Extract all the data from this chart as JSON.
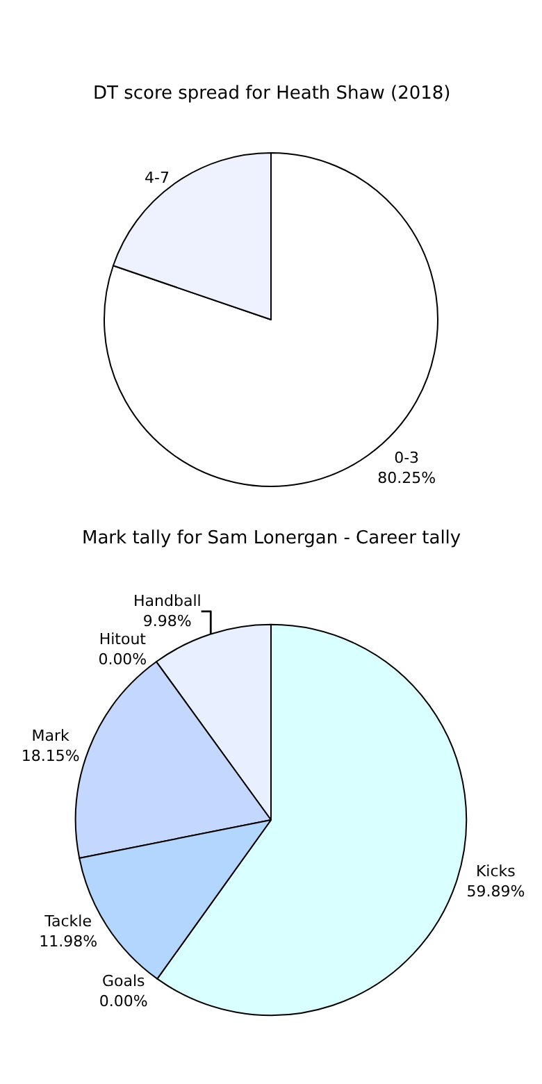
{
  "chart_data": [
    {
      "type": "pie",
      "title": "Mark tally for Sam Lonergan - Career tally",
      "categories": [
        "Kicks",
        "Handball",
        "Hitout",
        "Mark",
        "Tackle",
        "Goals"
      ],
      "values": [
        59.89,
        9.98,
        0.0,
        18.15,
        11.98,
        0.0
      ],
      "value_labels": [
        "59.89%",
        "9.98%",
        "0.00%",
        "18.15%",
        "11.98%",
        "0.00%"
      ],
      "colors": [
        "#d9ffff",
        "#e8f0ff",
        "#dde8ff",
        "#c4d8ff",
        "#b3d6ff",
        "#c8e0ff"
      ]
    },
    {
      "type": "pie",
      "title": "DT score spread for Heath Shaw (2018)",
      "categories": [
        "0-3",
        "4-7"
      ],
      "values": [
        80.25,
        19.75
      ],
      "value_labels": [
        "80.25%",
        null
      ],
      "colors": [
        "#ffffff",
        "#eef2ff"
      ]
    }
  ]
}
